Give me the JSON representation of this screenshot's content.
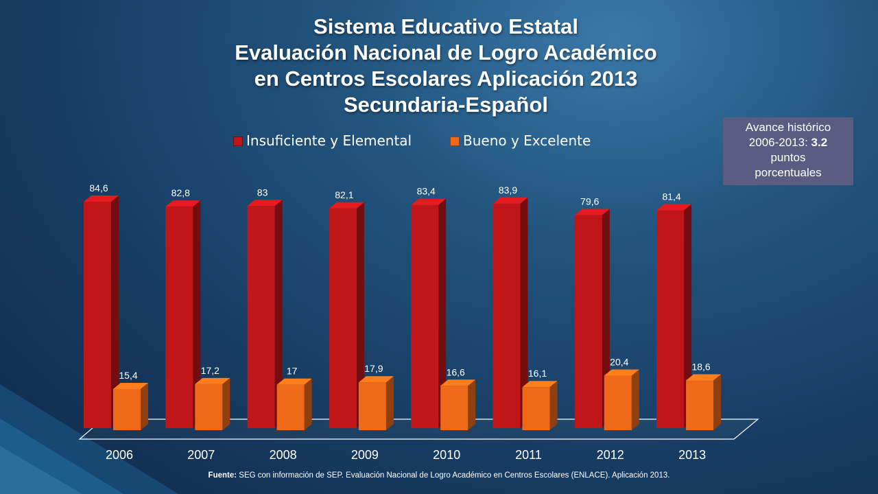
{
  "title_lines": [
    "Sistema Educativo Estatal",
    "Evaluación Nacional de Logro Académico",
    "en Centros Escolares Aplicación 2013",
    "Secundaria-Español"
  ],
  "info_box": {
    "line1": "Avance histórico",
    "line2_prefix": "2006-2013: ",
    "line2_value": "3.2",
    "line3": "puntos",
    "line4": "porcentuales"
  },
  "source": {
    "label": "Fuente:",
    "text": " SEG con información de SEP. Evaluación Nacional de Logro Académico en Centros Escolares (ENLACE). Aplicación 2013."
  },
  "chart_data": {
    "type": "bar",
    "style": "3d-clustered-column",
    "categories": [
      "2006",
      "2007",
      "2008",
      "2009",
      "2010",
      "2011",
      "2012",
      "2013"
    ],
    "series": [
      {
        "name": "Insuficiente y Elemental",
        "color": "#c0161a",
        "values": [
          84.6,
          82.8,
          83,
          82.1,
          83.4,
          83.9,
          79.6,
          81.4
        ],
        "labels": [
          "84,6",
          "82,8",
          "83",
          "82,1",
          "83,4",
          "83,9",
          "79,6",
          "81,4"
        ]
      },
      {
        "name": "Bueno y Excelente",
        "color": "#ee6a18",
        "values": [
          15.4,
          17.2,
          17,
          17.9,
          16.6,
          16.1,
          20.4,
          18.6
        ],
        "labels": [
          "15,4",
          "17,2",
          "17",
          "17,9",
          "16,6",
          "16,1",
          "20,4",
          "18,6"
        ]
      }
    ],
    "ylim": [
      0,
      100
    ],
    "legend_position": "top",
    "grid": false
  }
}
